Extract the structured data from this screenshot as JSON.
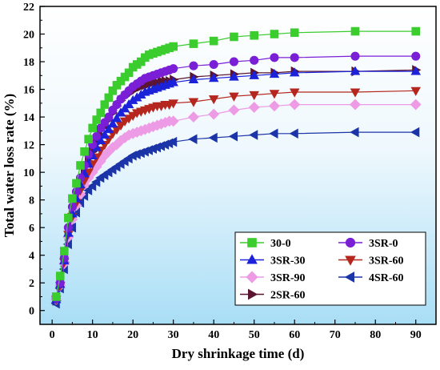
{
  "chart_data": {
    "type": "line",
    "title": "",
    "xlabel": "Dry shrinkage time (d)",
    "ylabel": "Total water loss rate (%)",
    "xlim": [
      -3,
      95
    ],
    "ylim": [
      -1,
      22
    ],
    "xticks": [
      0,
      10,
      20,
      30,
      40,
      50,
      60,
      70,
      80,
      90
    ],
    "yticks": [
      0,
      2,
      4,
      6,
      8,
      10,
      12,
      14,
      16,
      18,
      20,
      22
    ],
    "x_tick_labels": [
      "0",
      "10",
      "20",
      "30",
      "40",
      "50",
      "60",
      "70",
      "80",
      "90"
    ],
    "y_tick_labels": [
      "0",
      "2",
      "4",
      "6",
      "8",
      "10",
      "12",
      "14",
      "16",
      "18",
      "20",
      "22"
    ],
    "grid": false,
    "background": "gradient white-to-light-blue",
    "legend_position": "bottom-right",
    "x": [
      1,
      2,
      3,
      4,
      5,
      6,
      7,
      8,
      9,
      10,
      11,
      12,
      13,
      14,
      15,
      16,
      17,
      18,
      19,
      20,
      21,
      22,
      23,
      24,
      25,
      26,
      27,
      28,
      29,
      30,
      35,
      40,
      45,
      50,
      55,
      60,
      75,
      90
    ],
    "series": [
      {
        "name": "30-0",
        "marker": "square",
        "color": "#3bcc2e",
        "values": [
          1.0,
          2.5,
          4.3,
          6.7,
          8.1,
          9.2,
          10.5,
          11.5,
          12.4,
          13.2,
          13.8,
          14.3,
          14.9,
          15.4,
          15.9,
          16.3,
          16.6,
          16.9,
          17.2,
          17.6,
          17.8,
          18.0,
          18.3,
          18.5,
          18.6,
          18.7,
          18.8,
          18.9,
          19.0,
          19.1,
          19.3,
          19.5,
          19.8,
          19.9,
          20.0,
          20.1,
          20.2,
          20.2
        ]
      },
      {
        "name": "3SR-0",
        "marker": "circle",
        "color": "#7a1fd6",
        "values": [
          0.9,
          2.0,
          3.8,
          6.0,
          7.5,
          8.6,
          9.6,
          10.5,
          11.3,
          12.0,
          12.6,
          13.2,
          13.6,
          14.0,
          14.5,
          14.9,
          15.3,
          15.6,
          15.9,
          16.2,
          16.4,
          16.6,
          16.8,
          16.9,
          17.0,
          17.1,
          17.2,
          17.3,
          17.4,
          17.5,
          17.7,
          17.8,
          18.0,
          18.1,
          18.3,
          18.3,
          18.4,
          18.4
        ]
      },
      {
        "name": "3SR-30",
        "marker": "triangle-up",
        "color": "#1b22d9",
        "values": [
          0.8,
          1.9,
          3.6,
          5.6,
          7.0,
          8.1,
          9.1,
          9.9,
          10.6,
          11.2,
          11.8,
          12.3,
          12.7,
          13.1,
          13.5,
          13.9,
          14.3,
          14.6,
          14.9,
          15.2,
          15.4,
          15.6,
          15.8,
          15.9,
          16.0,
          16.1,
          16.2,
          16.3,
          16.4,
          16.5,
          16.7,
          16.8,
          16.9,
          17.0,
          17.1,
          17.2,
          17.3,
          17.3
        ]
      },
      {
        "name": "3SR-60",
        "marker": "triangle-down",
        "color": "#b5261e",
        "values": [
          0.8,
          1.8,
          3.5,
          5.5,
          6.8,
          7.8,
          8.7,
          9.4,
          10.0,
          10.6,
          11.1,
          11.6,
          12.0,
          12.4,
          12.8,
          13.1,
          13.4,
          13.7,
          13.9,
          14.1,
          14.3,
          14.4,
          14.5,
          14.6,
          14.7,
          14.8,
          14.8,
          14.9,
          14.9,
          15.0,
          15.1,
          15.3,
          15.5,
          15.6,
          15.7,
          15.8,
          15.8,
          15.9
        ]
      },
      {
        "name": "3SR-90",
        "marker": "diamond",
        "color": "#ee9be6",
        "values": [
          0.8,
          1.8,
          3.4,
          5.3,
          6.6,
          7.6,
          8.4,
          9.1,
          9.6,
          10.0,
          10.4,
          10.8,
          11.2,
          11.5,
          11.8,
          12.0,
          12.3,
          12.5,
          12.7,
          12.8,
          12.9,
          13.0,
          13.1,
          13.2,
          13.3,
          13.4,
          13.5,
          13.6,
          13.7,
          13.7,
          14.0,
          14.2,
          14.5,
          14.7,
          14.8,
          14.9,
          14.9,
          14.9
        ]
      },
      {
        "name": "4SR-60",
        "marker": "triangle-left",
        "color": "#1b34a8",
        "values": [
          0.5,
          1.6,
          3.0,
          4.8,
          6.0,
          7.1,
          7.8,
          8.3,
          8.7,
          9.0,
          9.3,
          9.6,
          9.8,
          10.0,
          10.2,
          10.4,
          10.6,
          10.8,
          11.0,
          11.2,
          11.3,
          11.4,
          11.5,
          11.6,
          11.7,
          11.8,
          11.9,
          12.0,
          12.1,
          12.2,
          12.4,
          12.5,
          12.6,
          12.7,
          12.8,
          12.8,
          12.9,
          12.9
        ]
      },
      {
        "name": "2SR-60",
        "marker": "triangle-right",
        "color": "#5a1530",
        "values": [
          0.7,
          1.8,
          3.5,
          5.4,
          6.9,
          8.1,
          9.1,
          10.0,
          10.8,
          11.5,
          12.1,
          12.7,
          13.3,
          13.8,
          14.3,
          14.8,
          15.2,
          15.5,
          15.7,
          15.9,
          16.1,
          16.2,
          16.3,
          16.4,
          16.5,
          16.5,
          16.6,
          16.6,
          16.6,
          16.7,
          16.9,
          17.0,
          17.1,
          17.2,
          17.2,
          17.3,
          17.3,
          17.4
        ]
      }
    ]
  }
}
